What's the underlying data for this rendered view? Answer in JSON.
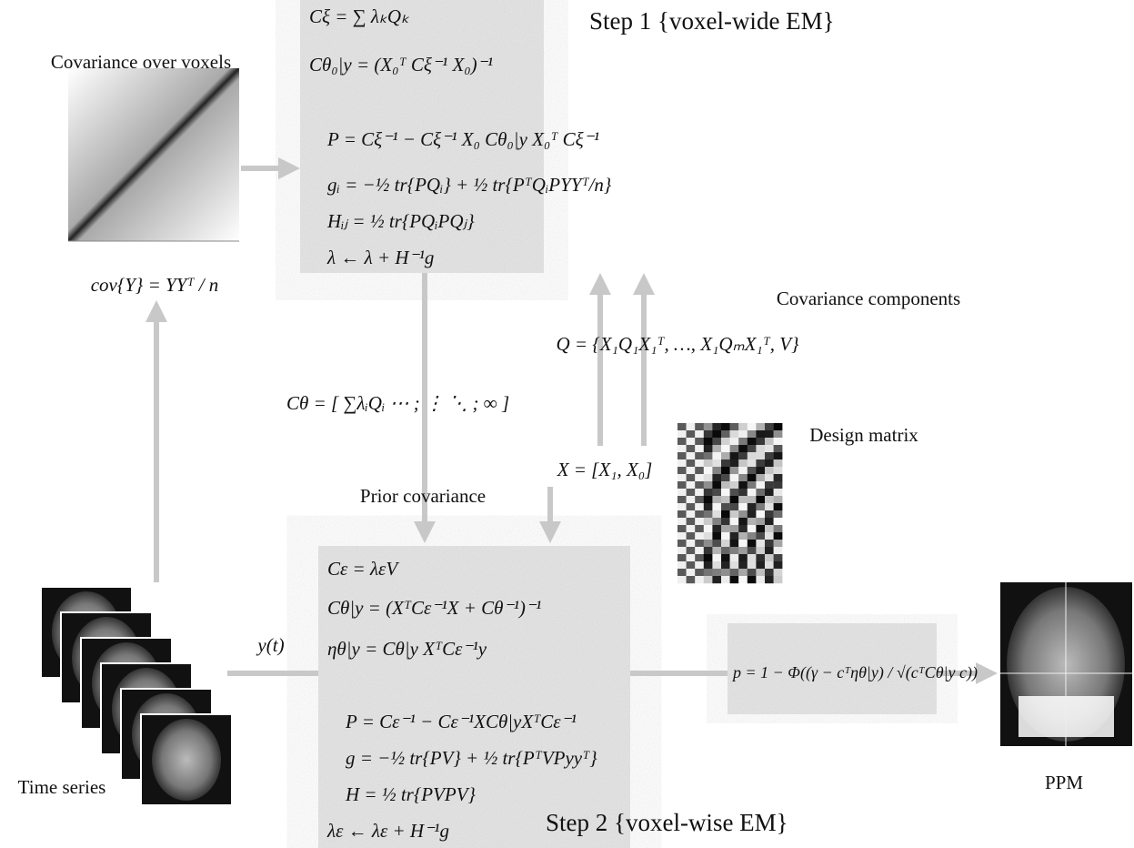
{
  "step1": {
    "title": "Step 1 {voxel-wide EM}",
    "equations": [
      "Cξ = ∑ λₖQₖ",
      "Cθ₀|y = (X₀ᵀ Cξ⁻¹ X₀)⁻¹",
      "P = Cξ⁻¹ − Cξ⁻¹ X₀ Cθ₀|y X₀ᵀ Cξ⁻¹",
      "gᵢ = −½ tr{PQᵢ} + ½ tr{PᵀQᵢPYYᵀ/n}",
      "Hᵢⱼ = ½ tr{PQᵢPQⱼ}",
      "λ ← λ + H⁻¹g"
    ]
  },
  "covariance": {
    "title": "Covariance over voxels",
    "equation": "cov{Y} = YYᵀ / n"
  },
  "components": {
    "title": "Covariance components",
    "equation": "Q = {X₁Q₁X₁ᵀ, …, X₁QₘX₁ᵀ, V}"
  },
  "prior": {
    "equation": "Cθ = [ ∑λᵢQᵢ ⋯ ; ⋮ ⋱ ; ∞ ]",
    "title": "Prior covariance"
  },
  "design": {
    "equation": "X = [X₁, X₀]",
    "title": "Design matrix"
  },
  "timeseries": {
    "title": "Time series",
    "signal": "y(t)"
  },
  "step2": {
    "title": "Step 2 {voxel-wise EM}",
    "equations": [
      "Cε = λεV",
      "Cθ|y = (XᵀCε⁻¹X + Cθ⁻¹)⁻¹",
      "ηθ|y = Cθ|y XᵀCε⁻¹y",
      "P = Cε⁻¹ − Cε⁻¹XCθ|yXᵀCε⁻¹",
      "g = −½ tr{PV} + ½ tr{PᵀVPyyᵀ}",
      "H = ½ tr{PVPV}",
      "λε ← λε + H⁻¹g"
    ]
  },
  "ppm": {
    "equation": "p = 1 − Φ((γ − cᵀηθ|y) / √(cᵀCθ|y c))",
    "title": "PPM"
  }
}
